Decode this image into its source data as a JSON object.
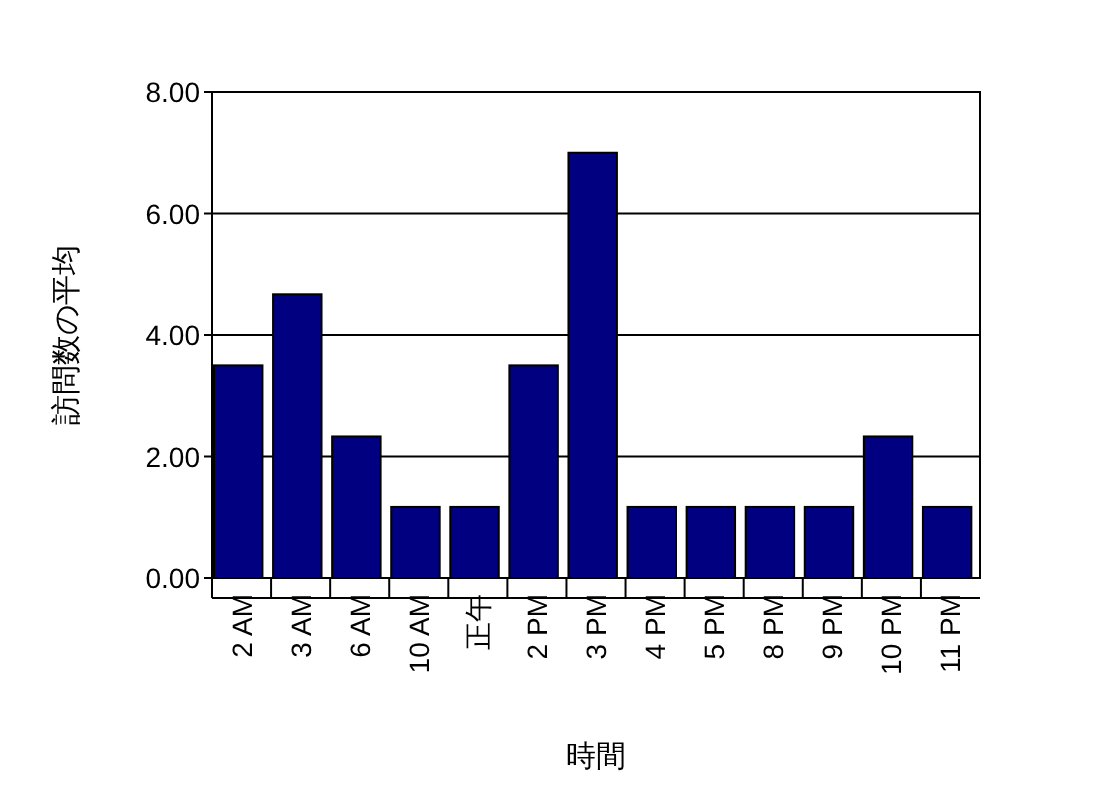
{
  "chart_data": {
    "type": "bar",
    "xlabel": "時間",
    "ylabel": "訪問数の平均",
    "categories": [
      "2 AM",
      "3 AM",
      "6 AM",
      "10 AM",
      "正午",
      "2 PM",
      "3 PM",
      "4 PM",
      "5 PM",
      "8 PM",
      "9 PM",
      "10 PM",
      "11 PM"
    ],
    "values": [
      3.5,
      4.67,
      2.33,
      1.17,
      1.17,
      3.5,
      7,
      1.17,
      1.17,
      1.17,
      1.17,
      2.33,
      1.17
    ],
    "color": "#000080",
    "ylim": [
      0,
      8
    ],
    "yticks": [
      {
        "value": 0,
        "label": "0.00"
      },
      {
        "value": 2,
        "label": "2.00"
      },
      {
        "value": 4,
        "label": "4.00"
      },
      {
        "value": 6,
        "label": "6.00"
      },
      {
        "value": 8,
        "label": "8.00"
      }
    ],
    "grid": "y"
  }
}
